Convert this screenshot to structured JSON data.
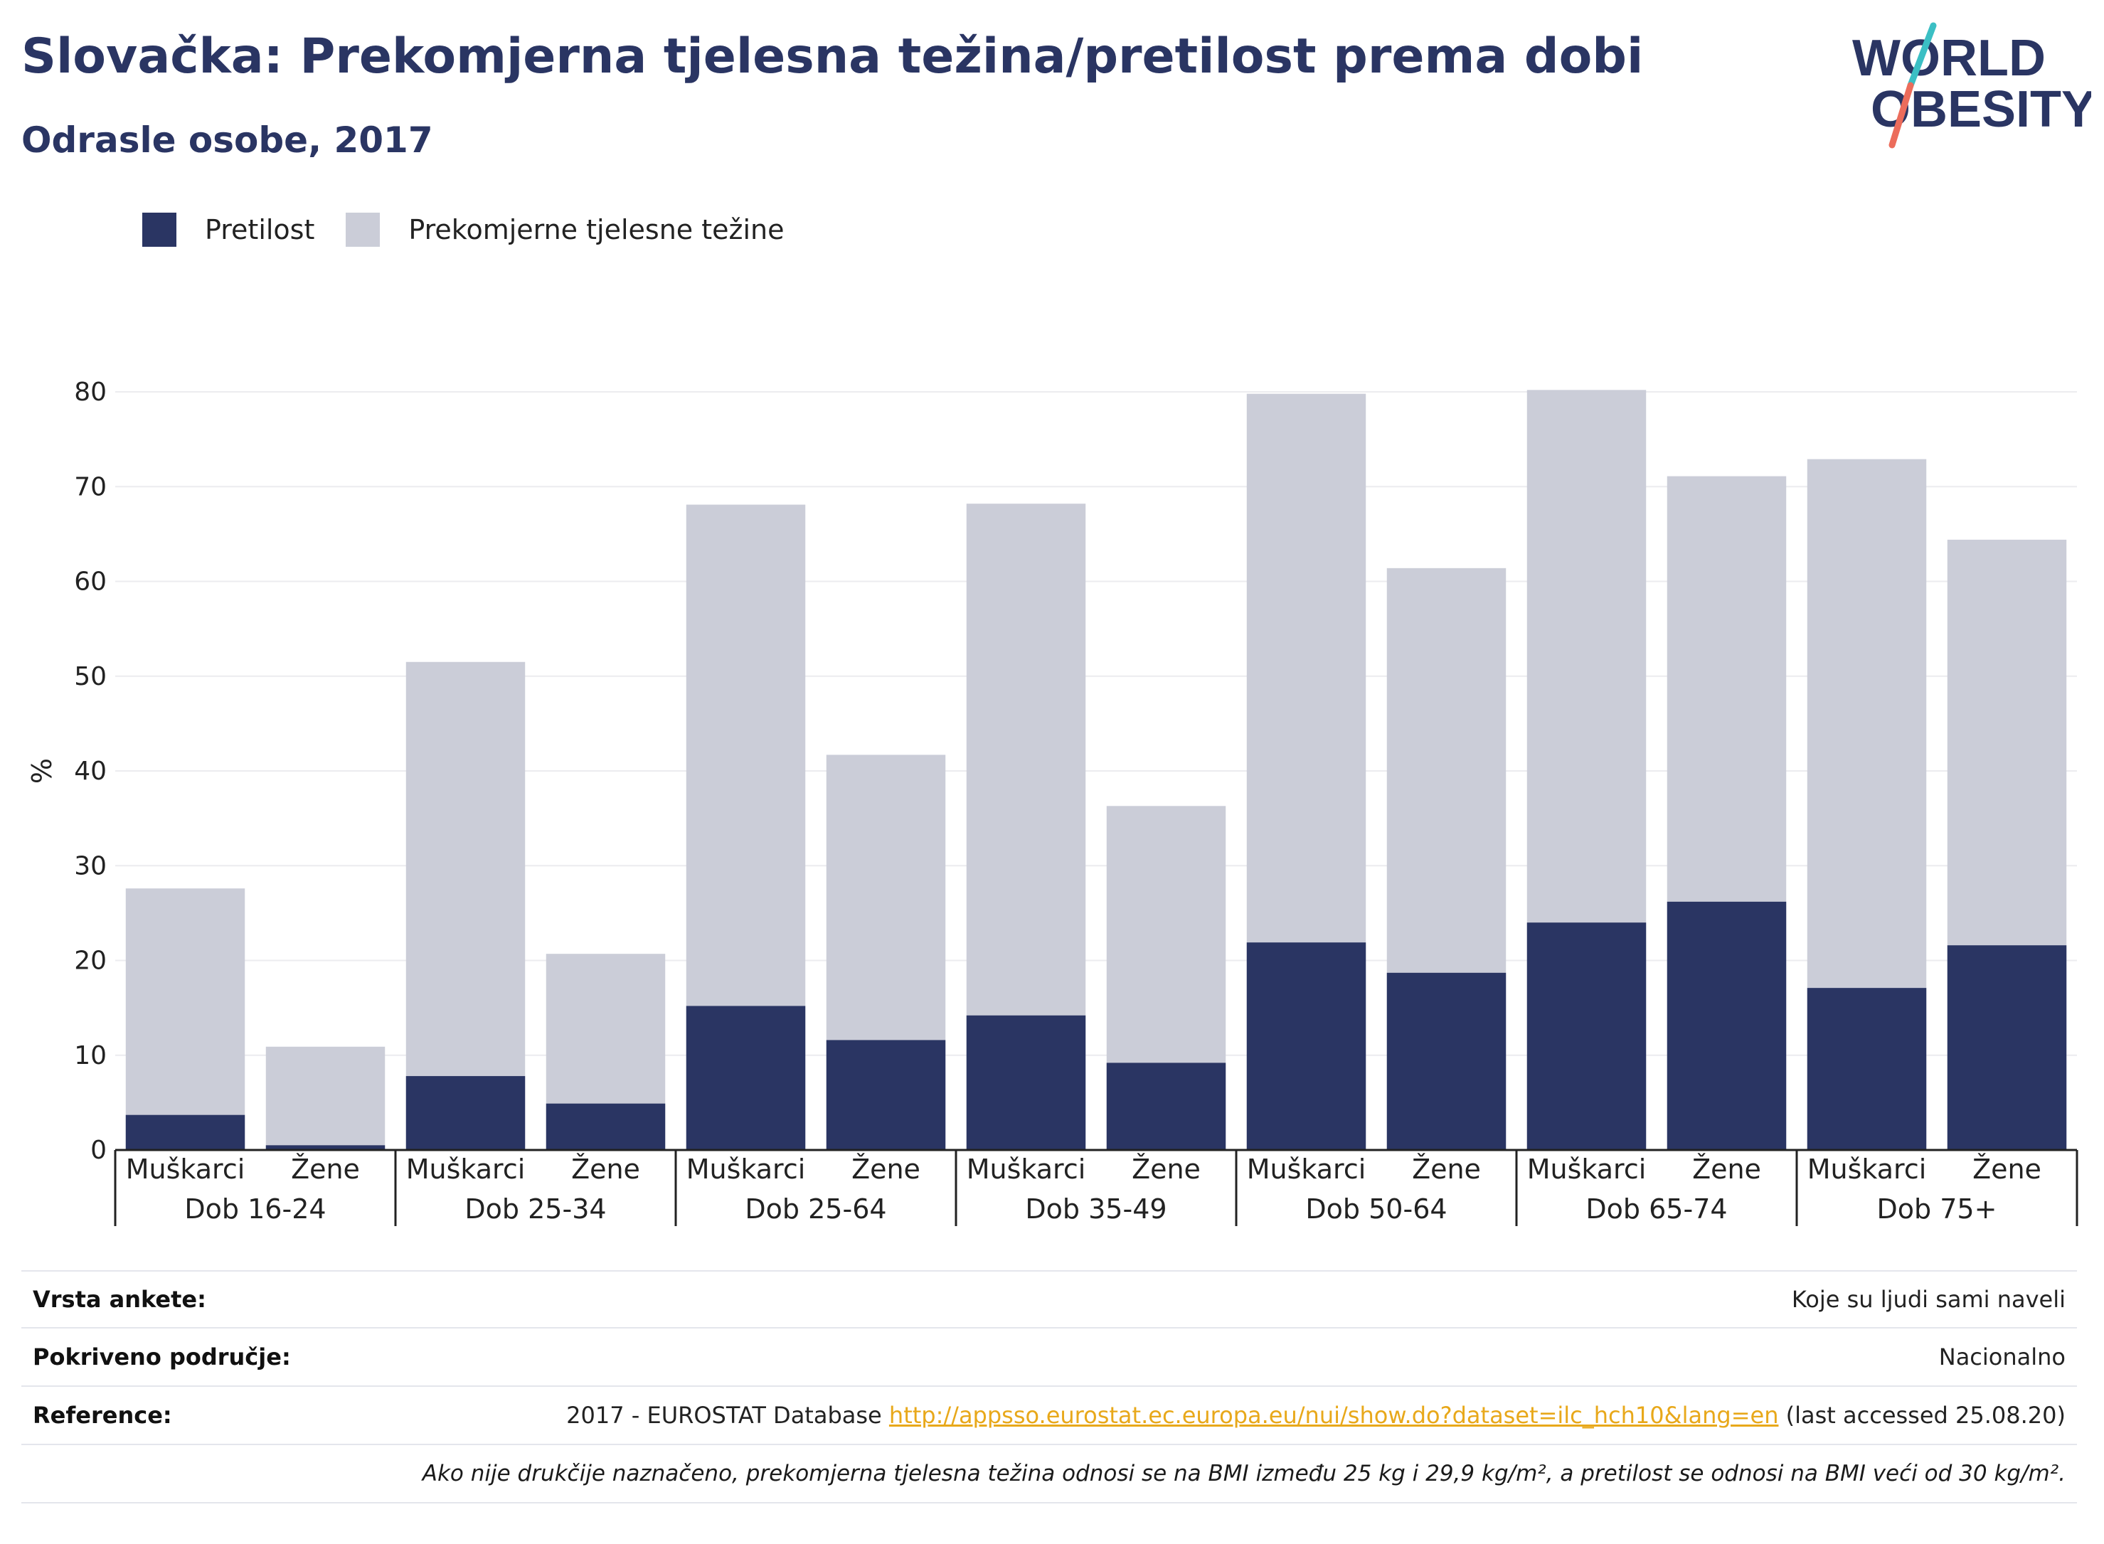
{
  "header": {
    "title": "Slovačka: Prekomjerna tjelesna težina/pretilost prema dobi",
    "subtitle": "Odrasle osobe, 2017"
  },
  "logo": {
    "line1": "WORLD",
    "line2": "OBESITY",
    "name": "world-obesity-logo"
  },
  "colors": {
    "obesity": "#2a3563",
    "overweight": "#cbcdd8",
    "accent_teal": "#3bbfc4",
    "accent_coral": "#ec6c5b",
    "link": "#e8a81a"
  },
  "chart_data": {
    "type": "bar",
    "stacked": "overlay",
    "ylabel": "%",
    "ylim": [
      0,
      80
    ],
    "yticks": [
      0,
      10,
      20,
      30,
      40,
      50,
      60,
      70,
      80
    ],
    "grid": true,
    "legend_position": "top-left",
    "groups": [
      "Dob 16-24",
      "Dob 25-34",
      "Dob 25-64",
      "Dob 35-49",
      "Dob 50-64",
      "Dob 65-74",
      "Dob 75+"
    ],
    "subcategories": [
      "Muškarci",
      "Žene"
    ],
    "series": [
      {
        "name": "Pretilost",
        "color": "#2a3563",
        "values": [
          3.7,
          0.5,
          7.8,
          4.9,
          15.2,
          11.6,
          14.2,
          9.2,
          21.9,
          18.7,
          24.0,
          26.2,
          17.1,
          21.6
        ]
      },
      {
        "name": "Prekomjerne tjelesne težine",
        "color": "#cbcdd8",
        "values": [
          27.6,
          10.9,
          51.5,
          20.7,
          68.1,
          41.7,
          68.2,
          36.3,
          79.8,
          61.4,
          80.2,
          71.1,
          72.9,
          64.4
        ]
      }
    ]
  },
  "info": [
    {
      "label": "Vrsta ankete:",
      "value": "Koje su ljudi sami naveli"
    },
    {
      "label": "Pokriveno područje:",
      "value": "Nacionalno"
    },
    {
      "label": "Reference:",
      "value_prefix": "2017 - EUROSTAT Database ",
      "link": "http://appsso.eurostat.ec.europa.eu/nui/show.do?dataset=ilc_hch10&lang=en",
      "value_suffix": " (last accessed 25.08.20)"
    }
  ],
  "note": "Ako nije drukčije naznačeno, prekomjerna tjelesna težina odnosi se na BMI između 25 kg i 29,9 kg/m², a pretilost se odnosi na BMI veći od 30 kg/m²."
}
